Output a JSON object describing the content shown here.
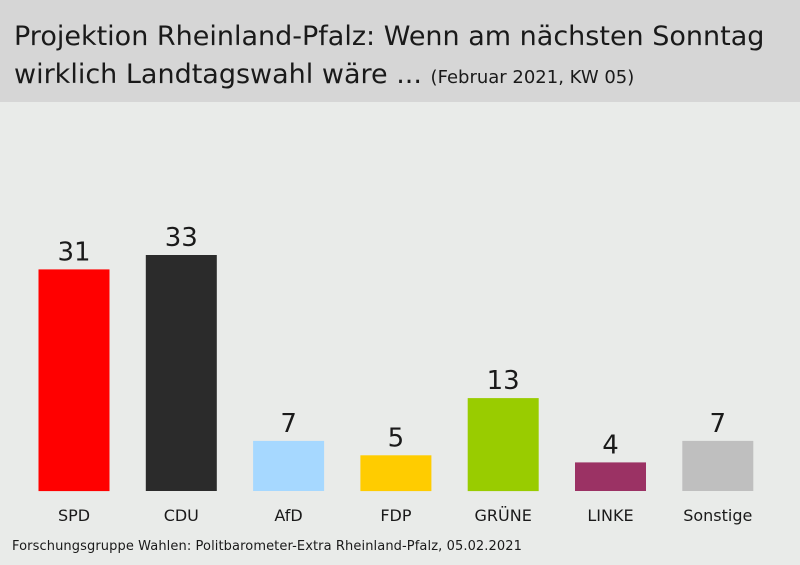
{
  "title": {
    "line1": "Projektion Rheinland-Pfalz: Wenn am nächsten Sonntag",
    "line2": "wirklich Landtagswahl wäre ...",
    "subtitle": "(Februar 2021, KW 05)"
  },
  "source": "Forschungsgruppe  Wahlen: Politbarometer-Extra Rheinland-Pfalz, 05.02.2021",
  "chart_data": {
    "type": "bar",
    "title": "Projektion Rheinland-Pfalz: Wenn am nächsten Sonntag wirklich Landtagswahl wäre ...",
    "subtitle": "(Februar 2021, KW 05)",
    "categories": [
      "SPD",
      "CDU",
      "AfD",
      "FDP",
      "GRÜNE",
      "LINKE",
      "Sonstige"
    ],
    "values": [
      31,
      33,
      7,
      5,
      13,
      4,
      7
    ],
    "colors": [
      "#ff0000",
      "#2b2b2b",
      "#a6d8ff",
      "#ffcc00",
      "#99cc00",
      "#9b3264",
      "#bfbfbf"
    ],
    "xlabel": "",
    "ylabel": "",
    "grid": false,
    "legend": "none"
  }
}
